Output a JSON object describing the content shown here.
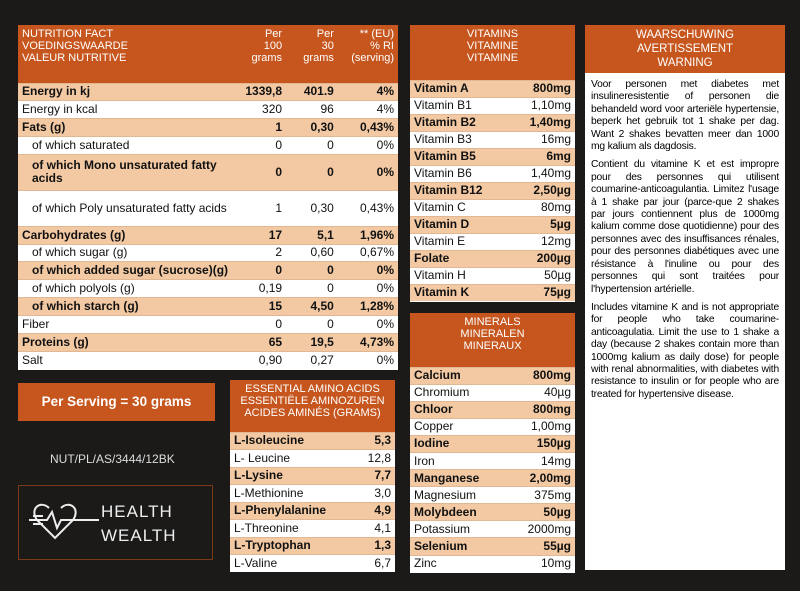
{
  "nutrition": {
    "header": [
      [
        "NUTRITION FACT",
        "VOEDINGSWAARDE",
        "VALEUR NUTRITIVE"
      ],
      [
        "Per",
        "100",
        "grams"
      ],
      [
        "Per",
        "30",
        "grams"
      ],
      [
        "** (EU)",
        "% RI",
        "(serving)"
      ]
    ],
    "rows": [
      [
        "Energy in kj",
        "1339,8",
        "401.9",
        "4%"
      ],
      [
        "Energy in kcal",
        "320",
        "96",
        "4%"
      ],
      [
        "Fats (g)",
        "1",
        "0,30",
        "0,43%"
      ],
      [
        "of which saturated",
        "0",
        "0",
        "0%"
      ],
      [
        "of which Mono unsaturated fatty acids",
        "0",
        "0",
        "0%"
      ],
      [
        "of which Poly unsaturated fatty acids",
        "1",
        "0,30",
        "0,43%"
      ],
      [
        "Carbohydrates (g)",
        "17",
        "5,1",
        "1,96%"
      ],
      [
        "of which sugar (g)",
        "2",
        "0,60",
        "0,67%"
      ],
      [
        "of which added sugar (sucrose)(g)",
        "0",
        "0",
        "0%"
      ],
      [
        "of which polyols (g)",
        "0,19",
        "0",
        "0%"
      ],
      [
        "of which starch (g)",
        "15",
        "4,50",
        "1,28%"
      ],
      [
        "Fiber",
        "0",
        "0",
        "0%"
      ],
      [
        "Proteins (g)",
        "65",
        "19,5",
        "4,73%"
      ],
      [
        "Salt",
        "0,90",
        "0,27",
        "0%"
      ]
    ]
  },
  "serving": "Per Serving = 30 grams",
  "code": "NUT/PL/AS/3444/12BK",
  "logo": {
    "top": "HEALTH",
    "bottom": "WEALTH"
  },
  "amino": {
    "header": [
      "ESSENTIAL AMINO ACIDS",
      "ESSENTIËLE AMINOZUREN",
      "ACIDES AMINÉS (GRAMS)"
    ],
    "rows": [
      [
        "L-Isoleucine",
        "5,3"
      ],
      [
        "L- Leucine",
        "12,8"
      ],
      [
        "L-Lysine",
        "7,7"
      ],
      [
        "L-Methionine",
        "3,0"
      ],
      [
        "L-Phenylalanine",
        "4,9"
      ],
      [
        "L-Threonine",
        "4,1"
      ],
      [
        "L-Tryptophan",
        "1,3"
      ],
      [
        "L-Valine",
        "6,7"
      ]
    ]
  },
  "vitamins": {
    "header": [
      "VITAMINS",
      "VITAMINE",
      "VITAMINE"
    ],
    "rows": [
      [
        "Vitamin A",
        "800mg"
      ],
      [
        "Vitamin B1",
        "1,10mg"
      ],
      [
        "Vitamin B2",
        "1,40mg"
      ],
      [
        "Vitamin B3",
        "16mg"
      ],
      [
        "Vitamin B5",
        "6mg"
      ],
      [
        "Vitamin B6",
        "1,40mg"
      ],
      [
        "Vitamin B12",
        "2,50µg"
      ],
      [
        "Vitamin C",
        "80mg"
      ],
      [
        "Vitamin D",
        "5µg"
      ],
      [
        "Vitamin E",
        "12mg"
      ],
      [
        "Folate",
        "200µg"
      ],
      [
        "Vitamin H",
        "50µg"
      ],
      [
        "Vitamin K",
        "75µg"
      ]
    ]
  },
  "minerals": {
    "header": [
      "MINERALS",
      "MINERALEN",
      "MINERAUX"
    ],
    "rows": [
      [
        "Calcium",
        "800mg"
      ],
      [
        "Chromium",
        "40µg"
      ],
      [
        "Chloor",
        "800mg"
      ],
      [
        "Copper",
        "1,00mg"
      ],
      [
        "Iodine",
        "150µg"
      ],
      [
        "Iron",
        "14mg"
      ],
      [
        "Manganese",
        "2,00mg"
      ],
      [
        "Magnesium",
        "375mg"
      ],
      [
        "Molybdeen",
        "50µg"
      ],
      [
        "Potassium",
        "2000mg"
      ],
      [
        "Selenium",
        "55µg"
      ],
      [
        "Zinc",
        "10mg"
      ]
    ]
  },
  "warning": {
    "header": [
      "WAARSCHUWING",
      "AVERTISSEMENT",
      "WARNING"
    ],
    "paragraphs": [
      "Voor personen met diabetes met insulineresistentie of personen die behandeld word voor arteriële hypertensie, beperk het gebruik tot 1 shake per dag. Want 2 shakes bevatten meer dan 1000 mg kalium als dagdosis.",
      "Contient du vitamine K et est impropre pour des personnes qui utilisent coumarine-anticoagulantia. Limitez l'usage à 1 shake par jour (parce-que 2 shakes par jours contiennent plus de 1000mg kalium comme dose quotidienne) pour des personnes avec des insuffisances rénales, pour des personnes diabétiques avec une résistance à l'inuline ou pour des personnes qui sont traitées pour l'hypertension artérielle.",
      "Includes vitamine K and is not appropriate for people who take coumarine-anticoagulatia. Limit the use to 1 shake a day (because 2 shakes contain more than 1000mg kalium as daily dose) for people with renal abnormalities, with diabetes with resistance to insulin or for people who are treated for hypertensive disease."
    ]
  }
}
